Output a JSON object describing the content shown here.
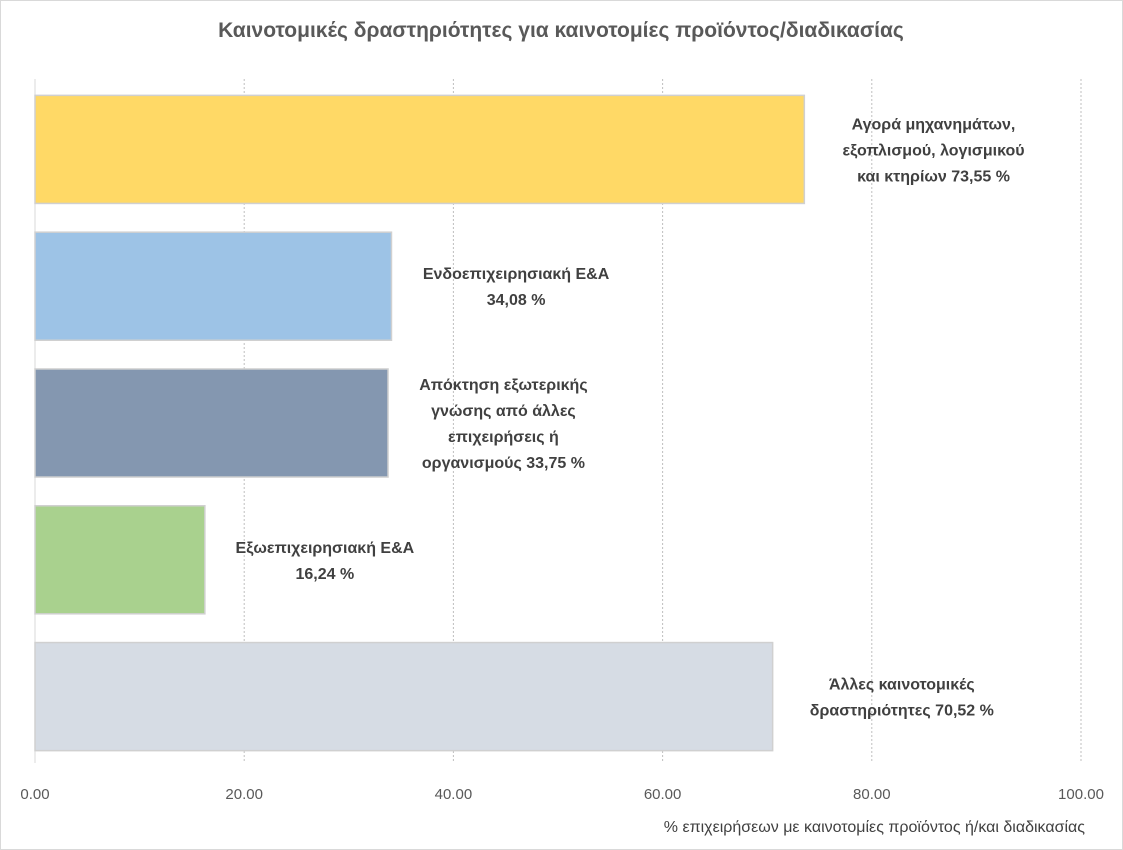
{
  "chart_data": {
    "type": "bar",
    "orientation": "horizontal",
    "title": "Καινοτομικές δραστηριότητες για καινοτομίες προϊόντος/διαδικασίας",
    "xlabel": "% επιχειρήσεων με καινοτομίες προϊόντος ή/και διαδικασίας",
    "ylabel": "",
    "xlim": [
      0,
      100
    ],
    "x_ticks": [
      "0.00",
      "20.00",
      "40.00",
      "60.00",
      "80.00",
      "100.00"
    ],
    "grid": true,
    "bars": [
      {
        "value": 73.55,
        "color": "#ffd966",
        "label_lines": [
          "Αγορά μηχανημάτων,",
          "εξοπλισμού, λογισμικού",
          "και κτηρίων 73,55 %"
        ]
      },
      {
        "value": 34.08,
        "color": "#9dc3e6",
        "label_lines": [
          "Ενδοεπιχειρησιακή Ε&Α",
          "34,08 %"
        ]
      },
      {
        "value": 33.75,
        "color": "#8497b0",
        "label_lines": [
          "Απόκτηση εξωτερικής",
          "γνώσης από άλλες",
          "επιχειρήσεις ή",
          "οργανισμούς 33,75 %"
        ]
      },
      {
        "value": 16.24,
        "color": "#a9d18e",
        "label_lines": [
          "Εξωεπιχειρησιακή Ε&Α",
          "16,24 %"
        ]
      },
      {
        "value": 70.52,
        "color": "#d6dce4",
        "label_lines": [
          "Άλλες καινοτομικές",
          "δραστηριότητες 70,52 %"
        ]
      }
    ]
  }
}
